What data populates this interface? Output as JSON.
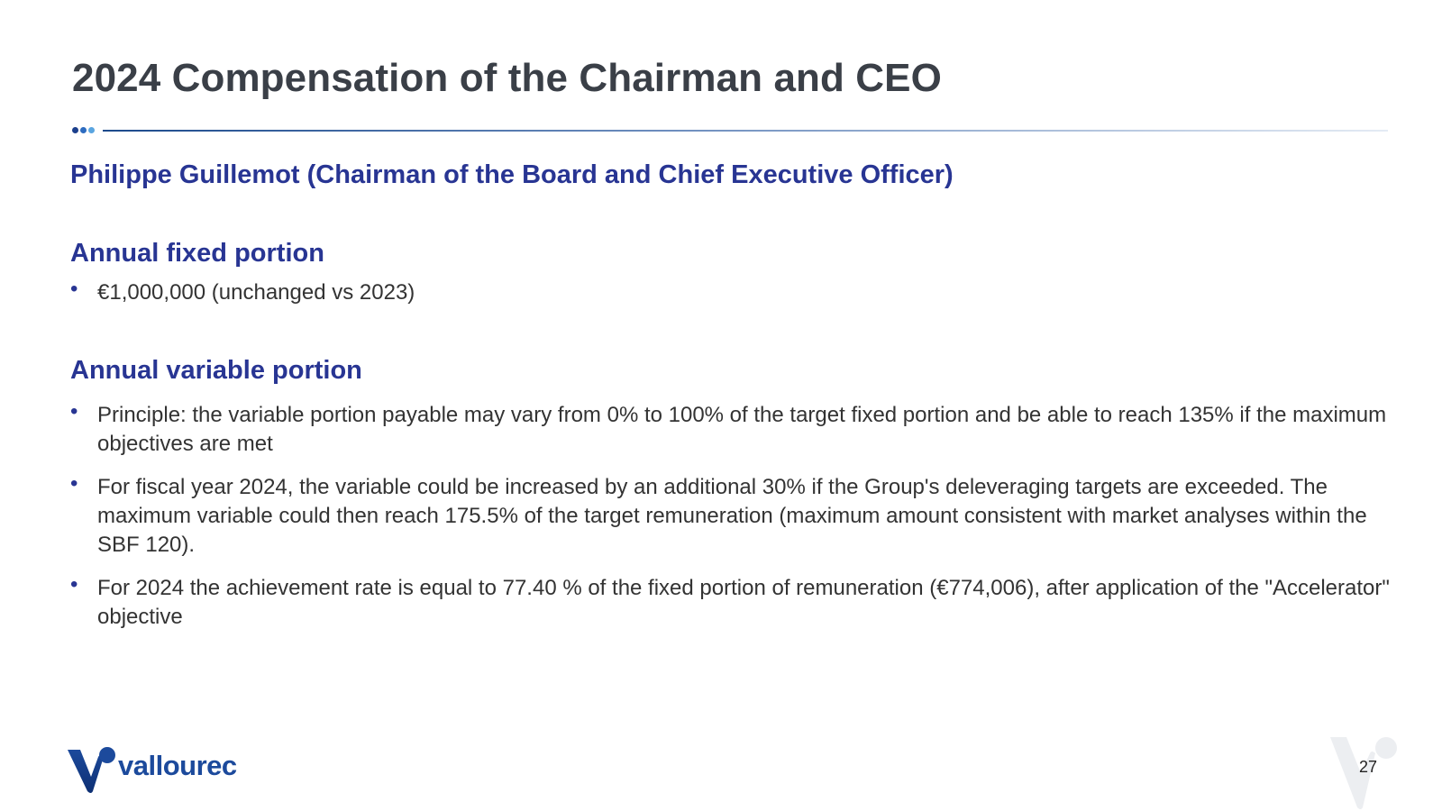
{
  "slide": {
    "title": "2024 Compensation of the Chairman and CEO",
    "subtitle": "Philippe Guillemot (Chairman of the Board and Chief Executive Officer)",
    "divider_dot_colors": [
      "#1c3f8c",
      "#2d6cc0",
      "#5aa5e0"
    ],
    "sections": [
      {
        "heading": "Annual fixed portion",
        "bullets": [
          "€1,000,000 (unchanged vs 2023)"
        ]
      },
      {
        "heading": "Annual variable portion",
        "bullets": [
          "Principle: the variable portion payable may vary from 0% to 100% of the target fixed portion and be able to reach 135% if the maximum objectives are met",
          "For fiscal year 2024, the variable could be increased by an additional 30% if the Group's deleveraging targets are exceeded. The maximum variable could then reach 175.5% of the target remuneration (maximum amount consistent with market analyses within the SBF 120).",
          "For 2024 the achievement rate is equal to 77.40 % of the fixed portion of remuneration (€774,006), after application of the \"Accelerator\" objective"
        ]
      }
    ],
    "bullet_symbol": "•",
    "page_number": "27"
  },
  "footer": {
    "logo_text": "vallourec",
    "logo_icon": "vallourec-v-icon",
    "watermark_icon": "vallourec-watermark-icon",
    "brand_color": "#1c4a9c"
  }
}
